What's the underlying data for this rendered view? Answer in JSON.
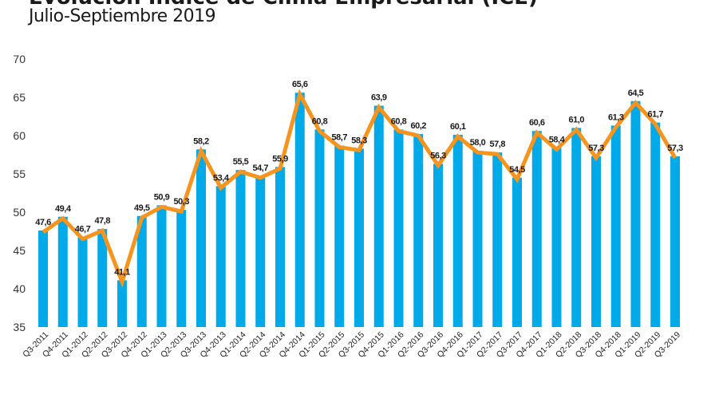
{
  "chart_data": {
    "type": "bar+line",
    "title": "Evolución Índice de Clima Empresarial (ICE)",
    "subtitle": "Julio-Septiembre 2019",
    "xlabel": "",
    "ylabel": "",
    "ylim": [
      35,
      70
    ],
    "yticks": [
      35,
      40,
      45,
      50,
      55,
      60,
      65,
      70
    ],
    "grid": false,
    "categories": [
      "Q3-2011",
      "Q4-2011",
      "Q1-2012",
      "Q2-2012",
      "Q3-2012",
      "Q4-2012",
      "Q1-2013",
      "Q2-2013",
      "Q3-2013",
      "Q4-2013",
      "Q1-2014",
      "Q2-2014",
      "Q3-2014",
      "Q4-2014",
      "Q1-2015",
      "Q2-2015",
      "Q3-2015",
      "Q4-2015",
      "Q1-2016",
      "Q2-2016",
      "Q3-2016",
      "Q4-2016",
      "Q1-2017",
      "Q2-2017",
      "Q3-2017",
      "Q4-2017",
      "Q1-2018",
      "Q2-2018",
      "Q3-2018",
      "Q4-2018",
      "Q1-2019",
      "Q2-2019",
      "Q3-2019"
    ],
    "values": [
      47.6,
      49.4,
      46.7,
      47.8,
      41.1,
      49.5,
      50.9,
      50.3,
      58.2,
      53.4,
      55.5,
      54.7,
      55.9,
      65.6,
      60.8,
      58.7,
      58.3,
      63.9,
      60.8,
      60.2,
      56.3,
      60.1,
      58.0,
      57.8,
      54.5,
      60.6,
      58.4,
      61.0,
      57.3,
      61.3,
      64.5,
      61.7,
      57.3
    ],
    "labels": [
      "47,6",
      "49,4",
      "46,7",
      "47,8",
      "41,1",
      "49,5",
      "50,9",
      "50,3",
      "58,2",
      "53,4",
      "55,5",
      "54,7",
      "55,9",
      "65,6",
      "60,8",
      "58,7",
      "58,3",
      "63,9",
      "60,8",
      "60,2",
      "56,3",
      "60,1",
      "58,0",
      "57,8",
      "54,5",
      "60,6",
      "58,4",
      "61,0",
      "57,3",
      "61,3",
      "64,5",
      "61,7",
      "57,3"
    ],
    "colors": {
      "bar": "#00a9e8",
      "line": "#f7941d",
      "text": "#1a1a1a"
    }
  }
}
